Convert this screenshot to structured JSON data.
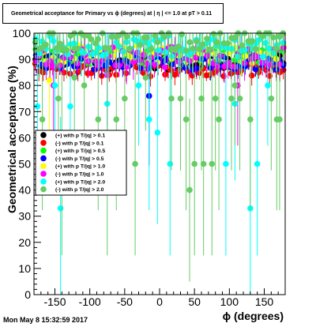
{
  "title": "Geometrical acceptance for Primary vs ϕ (degrees) at | η | <= 1.0 at pT > 0.11",
  "timestamp": "Mon May  8 15:32:59 2017",
  "chart_data": {
    "type": "scatter",
    "xlabel": "ϕ (degrees)",
    "ylabel": "Geometrical acceptance (%)",
    "xlim": [
      -180,
      180
    ],
    "ylim": [
      0,
      100
    ],
    "xticks": [
      -150,
      -100,
      -50,
      0,
      50,
      100,
      150
    ],
    "yticks": [
      0,
      10,
      20,
      30,
      40,
      50,
      60,
      70,
      80,
      90,
      100
    ],
    "grid": false,
    "legend_position": "left-middle",
    "series": [
      {
        "name": "(+) with p T/|q| > 0.1",
        "color": "#000000",
        "center": 89,
        "spread": 3,
        "err": 4,
        "outliers": []
      },
      {
        "name": "(-) with p T/|q| > 0.1",
        "color": "#ff0000",
        "center": 86,
        "spread": 2.5,
        "err": 4,
        "outliers": []
      },
      {
        "name": "(+) with p T/|q| > 0.5",
        "color": "#00ff00",
        "center": 91,
        "spread": 3,
        "err": 5,
        "outliers": []
      },
      {
        "name": "(-) with p T/|q| > 0.5",
        "color": "#0000ff",
        "center": 89,
        "spread": 3,
        "err": 5,
        "outliers": [
          [
            -15,
            76
          ]
        ]
      },
      {
        "name": "(+) with p T/|q| > 1.0",
        "color": "#ffff00",
        "center": 92,
        "spread": 3.5,
        "err": 6,
        "outliers": [
          [
            -158,
            82
          ]
        ]
      },
      {
        "name": "(-) with p T/|q| > 1.0",
        "color": "#ff00ff",
        "center": 91,
        "spread": 4,
        "err": 7,
        "outliers": [
          [
            -152,
            80
          ],
          [
            -75,
            84
          ],
          [
            112,
            80
          ]
        ]
      },
      {
        "name": "(+) with p T/|q| > 2.0",
        "color": "#00ffff",
        "center": 95,
        "spread": 4,
        "err": 10,
        "outliers": [
          [
            -175,
            72
          ],
          [
            -150,
            80
          ],
          [
            -142,
            33
          ],
          [
            -128,
            72
          ],
          [
            -75,
            73
          ],
          [
            -30,
            80
          ],
          [
            -15,
            67
          ],
          [
            -3,
            62
          ],
          [
            15,
            50
          ],
          [
            95,
            50
          ],
          [
            108,
            73
          ],
          [
            130,
            33
          ],
          [
            140,
            50
          ],
          [
            155,
            80
          ]
        ]
      },
      {
        "name": "(-) with p T/|q| > 2.0",
        "color": "#66cc66",
        "center": 97,
        "spread": 4,
        "err": 12,
        "outliers": [
          [
            -168,
            67
          ],
          [
            -145,
            75
          ],
          [
            -140,
            50
          ],
          [
            -122,
            83
          ],
          [
            -122,
            100
          ],
          [
            -108,
            80
          ],
          [
            -88,
            67
          ],
          [
            -75,
            50
          ],
          [
            -62,
            67
          ],
          [
            -50,
            75
          ],
          [
            -35,
            50
          ],
          [
            -20,
            83
          ],
          [
            17,
            75
          ],
          [
            30,
            75
          ],
          [
            38,
            67
          ],
          [
            43,
            40
          ],
          [
            50,
            50
          ],
          [
            60,
            75
          ],
          [
            63,
            50
          ],
          [
            75,
            50
          ],
          [
            80,
            75
          ],
          [
            85,
            67
          ],
          [
            103,
            75
          ],
          [
            108,
            80
          ],
          [
            115,
            75
          ],
          [
            130,
            67
          ],
          [
            160,
            75
          ],
          [
            168,
            67
          ],
          [
            172,
            67
          ]
        ]
      }
    ]
  }
}
